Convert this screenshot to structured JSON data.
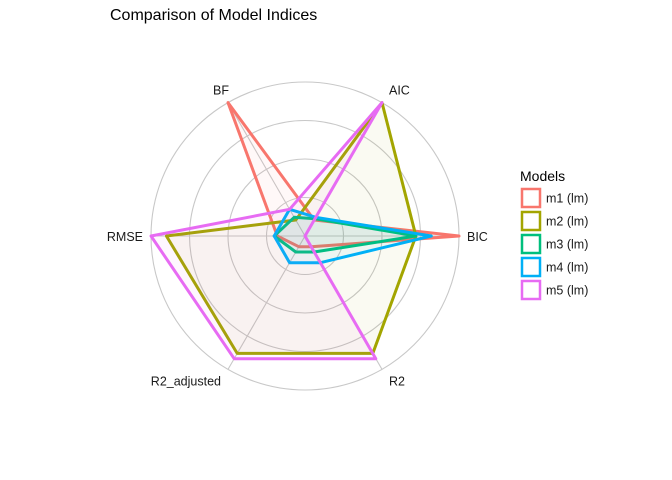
{
  "chart_data": {
    "type": "radar",
    "title": "Comparison of Model Indices",
    "axes": [
      "BIC",
      "AIC",
      "BF",
      "RMSE",
      "R2_adjusted",
      "R2"
    ],
    "rlim": [
      0,
      1
    ],
    "grid": true,
    "legend": {
      "title": "Models",
      "placement": "right"
    },
    "series": [
      {
        "name": "m1 (lm)",
        "color": "#F8766D",
        "values": [
          1.0,
          0.12,
          1.0,
          0.18,
          0.08,
          0.08
        ]
      },
      {
        "name": "m2 (lm)",
        "color": "#A3A500",
        "values": [
          0.72,
          1.0,
          0.12,
          0.9,
          0.88,
          0.88
        ]
      },
      {
        "name": "m3 (lm)",
        "color": "#00BF7D",
        "values": [
          0.72,
          0.13,
          0.14,
          0.2,
          0.12,
          0.12
        ]
      },
      {
        "name": "m4 (lm)",
        "color": "#00B0F6",
        "values": [
          0.82,
          0.14,
          0.2,
          0.2,
          0.2,
          0.2
        ]
      },
      {
        "name": "m5 (lm)",
        "color": "#E76BF3",
        "values": [
          0.0,
          1.0,
          0.2,
          1.0,
          0.92,
          0.92
        ]
      }
    ]
  }
}
